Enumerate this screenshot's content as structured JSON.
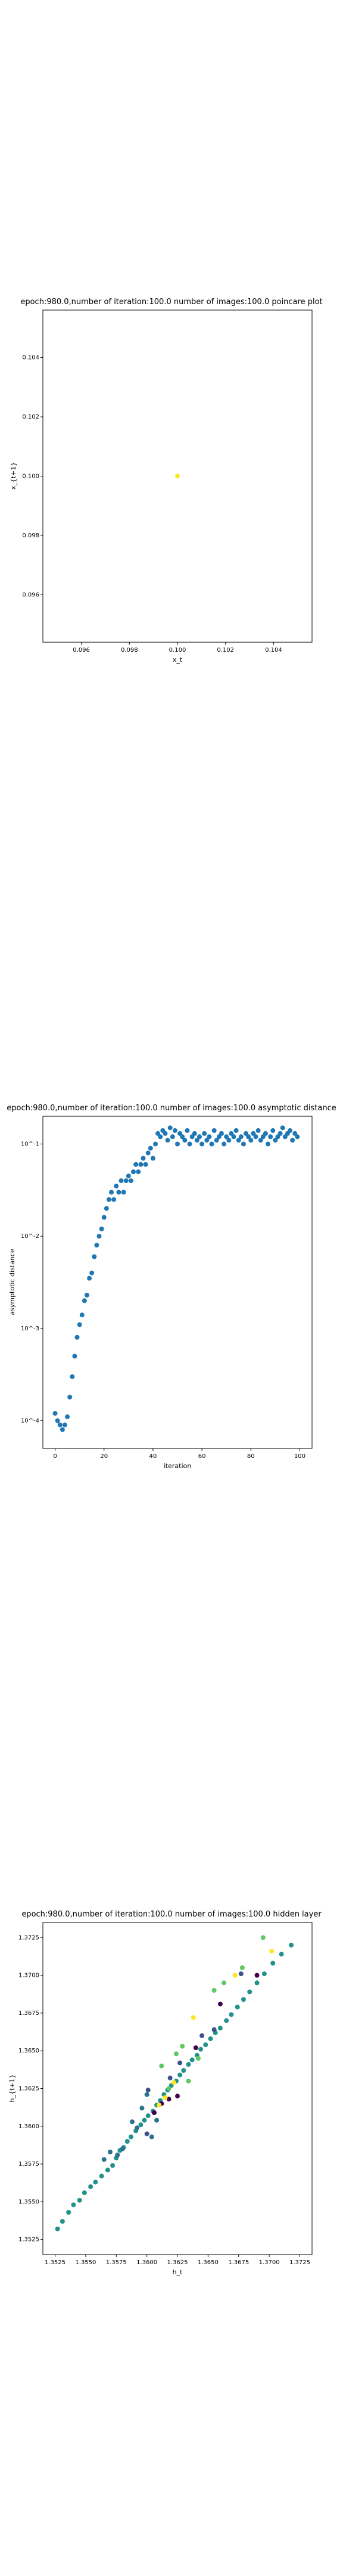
{
  "page": {
    "background": "#ffffff"
  },
  "charts": [
    {
      "id": "poincare",
      "title": "epoch:980.0,number of iteration:100.0  number of images:100.0 poincare plot",
      "xlabel": "x_t",
      "ylabel": "x_{t+1}",
      "xticks": [
        "0.096",
        "0.098",
        "0.100",
        "0.102",
        "0.104"
      ],
      "yticks": [
        "0.104",
        "0.102",
        "0.100",
        "0.098",
        "0.096"
      ]
    },
    {
      "id": "asymptotic",
      "title": "epoch:980.0,number of iteration:100.0  number of images:100.0 asymptotic distance",
      "xlabel": "iteration",
      "ylabel": "asymptotic distance",
      "xticks": [
        "0",
        "20",
        "40",
        "60",
        "80",
        "100"
      ],
      "yticks": [
        "10^-1",
        "10^-2",
        "10^-3",
        "10^-4"
      ]
    },
    {
      "id": "hidden",
      "title": "epoch:980.0,number of iteration:100.0  number of images:100.0 hidden layer",
      "xlabel": "h_t",
      "ylabel": "h_{t+1}",
      "xticks": [
        "1.3525",
        "1.3550",
        "1.3575",
        "1.3600",
        "1.3625",
        "1.3650",
        "1.3675",
        "1.3700",
        "1.3725"
      ],
      "yticks": [
        "1.3725",
        "1.3700",
        "1.3675",
        "1.3650",
        "1.3625",
        "1.3600",
        "1.3575",
        "1.3550",
        "1.3525"
      ]
    }
  ],
  "chart_data": [
    {
      "type": "scatter",
      "title": "epoch:980.0,number of iteration:100.0  number of images:100.0 poincare plot",
      "xlabel": "x_t",
      "ylabel": "x_{t+1}",
      "xlim": [
        0.0944,
        0.1056
      ],
      "ylim": [
        0.0944,
        0.1056
      ],
      "points": [
        {
          "x": 0.1,
          "y": 0.1
        }
      ],
      "color": "#fde725"
    },
    {
      "type": "scatter",
      "title": "epoch:980.0,number of iteration:100.0  number of images:100.0 asymptotic distance",
      "xlabel": "iteration",
      "ylabel": "asymptotic distance",
      "xlim": [
        -5,
        105
      ],
      "yscale": "log",
      "ylim": [
        5e-05,
        0.2
      ],
      "x": [
        0,
        1,
        2,
        3,
        4,
        5,
        6,
        7,
        8,
        9,
        10,
        11,
        12,
        13,
        14,
        15,
        16,
        17,
        18,
        19,
        20,
        21,
        22,
        23,
        24,
        25,
        26,
        27,
        28,
        29,
        30,
        31,
        32,
        33,
        34,
        35,
        36,
        37,
        38,
        39,
        40,
        41,
        42,
        43,
        44,
        45,
        46,
        47,
        48,
        49,
        50,
        51,
        52,
        53,
        54,
        55,
        56,
        57,
        58,
        59,
        60,
        61,
        62,
        63,
        64,
        65,
        66,
        67,
        68,
        69,
        70,
        71,
        72,
        73,
        74,
        75,
        76,
        77,
        78,
        79,
        80,
        81,
        82,
        83,
        84,
        85,
        86,
        87,
        88,
        89,
        90,
        91,
        92,
        93,
        94,
        95,
        96,
        97,
        98,
        99
      ],
      "y": [
        0.00012,
        0.0001,
        9e-05,
        8e-05,
        9e-05,
        0.00011,
        0.00018,
        0.0003,
        0.0005,
        0.0008,
        0.0011,
        0.0014,
        0.002,
        0.0023,
        0.0035,
        0.004,
        0.006,
        0.008,
        0.01,
        0.012,
        0.016,
        0.02,
        0.025,
        0.03,
        0.025,
        0.035,
        0.03,
        0.04,
        0.03,
        0.04,
        0.045,
        0.04,
        0.05,
        0.06,
        0.05,
        0.06,
        0.07,
        0.06,
        0.08,
        0.09,
        0.07,
        0.1,
        0.13,
        0.12,
        0.14,
        0.13,
        0.11,
        0.15,
        0.12,
        0.14,
        0.1,
        0.13,
        0.12,
        0.11,
        0.14,
        0.1,
        0.12,
        0.13,
        0.11,
        0.12,
        0.1,
        0.13,
        0.11,
        0.12,
        0.1,
        0.14,
        0.11,
        0.12,
        0.13,
        0.1,
        0.12,
        0.11,
        0.13,
        0.12,
        0.14,
        0.11,
        0.12,
        0.1,
        0.13,
        0.12,
        0.11,
        0.13,
        0.12,
        0.14,
        0.11,
        0.12,
        0.13,
        0.1,
        0.12,
        0.14,
        0.11,
        0.12,
        0.13,
        0.15,
        0.12,
        0.13,
        0.14,
        0.11,
        0.13,
        0.12
      ],
      "color": "#1f77b4"
    },
    {
      "type": "scatter",
      "title": "epoch:980.0,number of iteration:100.0  number of images:100.0 hidden layer",
      "xlabel": "h_t",
      "ylabel": "h_{t+1}",
      "xlim": [
        1.3515,
        1.3735
      ],
      "ylim": [
        1.3515,
        1.3735
      ],
      "points": [
        {
          "x": 1.3527,
          "y": 1.3532,
          "c": "#21918c"
        },
        {
          "x": 1.3531,
          "y": 1.3537,
          "c": "#21918c"
        },
        {
          "x": 1.3536,
          "y": 1.3543,
          "c": "#21918c"
        },
        {
          "x": 1.354,
          "y": 1.3548,
          "c": "#21918c"
        },
        {
          "x": 1.3545,
          "y": 1.3551,
          "c": "#21918c"
        },
        {
          "x": 1.3549,
          "y": 1.3556,
          "c": "#21918c"
        },
        {
          "x": 1.3554,
          "y": 1.356,
          "c": "#21918c"
        },
        {
          "x": 1.3558,
          "y": 1.3563,
          "c": "#21918c"
        },
        {
          "x": 1.3563,
          "y": 1.3567,
          "c": "#21918c"
        },
        {
          "x": 1.3568,
          "y": 1.3571,
          "c": "#21918c"
        },
        {
          "x": 1.3572,
          "y": 1.3574,
          "c": "#21918c"
        },
        {
          "x": 1.3575,
          "y": 1.3579,
          "c": "#21918c"
        },
        {
          "x": 1.3578,
          "y": 1.3584,
          "c": "#21918c"
        },
        {
          "x": 1.3581,
          "y": 1.3586,
          "c": "#21918c"
        },
        {
          "x": 1.3584,
          "y": 1.359,
          "c": "#21918c"
        },
        {
          "x": 1.3587,
          "y": 1.3593,
          "c": "#21918c"
        },
        {
          "x": 1.3591,
          "y": 1.3597,
          "c": "#21918c"
        },
        {
          "x": 1.3595,
          "y": 1.3601,
          "c": "#21918c"
        },
        {
          "x": 1.3598,
          "y": 1.3604,
          "c": "#21918c"
        },
        {
          "x": 1.3601,
          "y": 1.3607,
          "c": "#21918c"
        },
        {
          "x": 1.3605,
          "y": 1.361,
          "c": "#21918c"
        },
        {
          "x": 1.3608,
          "y": 1.3614,
          "c": "#21918c"
        },
        {
          "x": 1.3611,
          "y": 1.3617,
          "c": "#21918c"
        },
        {
          "x": 1.3614,
          "y": 1.3621,
          "c": "#21918c"
        },
        {
          "x": 1.3617,
          "y": 1.3624,
          "c": "#21918c"
        },
        {
          "x": 1.362,
          "y": 1.3627,
          "c": "#21918c"
        },
        {
          "x": 1.3624,
          "y": 1.363,
          "c": "#21918c"
        },
        {
          "x": 1.3627,
          "y": 1.3634,
          "c": "#21918c"
        },
        {
          "x": 1.363,
          "y": 1.3637,
          "c": "#21918c"
        },
        {
          "x": 1.3634,
          "y": 1.3641,
          "c": "#21918c"
        },
        {
          "x": 1.3637,
          "y": 1.3644,
          "c": "#21918c"
        },
        {
          "x": 1.3641,
          "y": 1.3647,
          "c": "#21918c"
        },
        {
          "x": 1.3644,
          "y": 1.3651,
          "c": "#21918c"
        },
        {
          "x": 1.3648,
          "y": 1.3654,
          "c": "#21918c"
        },
        {
          "x": 1.3652,
          "y": 1.3658,
          "c": "#21918c"
        },
        {
          "x": 1.3656,
          "y": 1.3662,
          "c": "#21918c"
        },
        {
          "x": 1.366,
          "y": 1.3665,
          "c": "#21918c"
        },
        {
          "x": 1.3665,
          "y": 1.367,
          "c": "#21918c"
        },
        {
          "x": 1.3669,
          "y": 1.3674,
          "c": "#21918c"
        },
        {
          "x": 1.3674,
          "y": 1.3679,
          "c": "#21918c"
        },
        {
          "x": 1.3679,
          "y": 1.3684,
          "c": "#21918c"
        },
        {
          "x": 1.3684,
          "y": 1.3689,
          "c": "#21918c"
        },
        {
          "x": 1.369,
          "y": 1.3695,
          "c": "#21918c"
        },
        {
          "x": 1.3696,
          "y": 1.3701,
          "c": "#21918c"
        },
        {
          "x": 1.3703,
          "y": 1.3708,
          "c": "#21918c"
        },
        {
          "x": 1.371,
          "y": 1.3714,
          "c": "#21918c"
        },
        {
          "x": 1.3718,
          "y": 1.372,
          "c": "#21918c"
        },
        {
          "x": 1.3565,
          "y": 1.3578,
          "c": "#2c728e"
        },
        {
          "x": 1.357,
          "y": 1.3583,
          "c": "#2c728e"
        },
        {
          "x": 1.3576,
          "y": 1.3581,
          "c": "#2c728e"
        },
        {
          "x": 1.358,
          "y": 1.3585,
          "c": "#2c728e"
        },
        {
          "x": 1.3588,
          "y": 1.3603,
          "c": "#2c728e"
        },
        {
          "x": 1.3592,
          "y": 1.3599,
          "c": "#2c728e"
        },
        {
          "x": 1.3596,
          "y": 1.3612,
          "c": "#2c728e"
        },
        {
          "x": 1.36,
          "y": 1.3621,
          "c": "#2c728e"
        },
        {
          "x": 1.3604,
          "y": 1.3593,
          "c": "#2c728e"
        },
        {
          "x": 1.3608,
          "y": 1.3604,
          "c": "#2c728e"
        },
        {
          "x": 1.3606,
          "y": 1.3609,
          "c": "#440154"
        },
        {
          "x": 1.3612,
          "y": 1.3615,
          "c": "#440154"
        },
        {
          "x": 1.3618,
          "y": 1.3618,
          "c": "#440154"
        },
        {
          "x": 1.3625,
          "y": 1.362,
          "c": "#440154"
        },
        {
          "x": 1.364,
          "y": 1.3652,
          "c": "#440154"
        },
        {
          "x": 1.366,
          "y": 1.3681,
          "c": "#440154"
        },
        {
          "x": 1.369,
          "y": 1.37,
          "c": "#440154"
        },
        {
          "x": 1.361,
          "y": 1.3614,
          "c": "#fde725"
        },
        {
          "x": 1.3615,
          "y": 1.3619,
          "c": "#fde725"
        },
        {
          "x": 1.3622,
          "y": 1.3629,
          "c": "#fde725"
        },
        {
          "x": 1.3638,
          "y": 1.3672,
          "c": "#fde725"
        },
        {
          "x": 1.3672,
          "y": 1.37,
          "c": "#fde725"
        },
        {
          "x": 1.3702,
          "y": 1.3716,
          "c": "#fde725"
        },
        {
          "x": 1.3612,
          "y": 1.364,
          "c": "#5ec962"
        },
        {
          "x": 1.3618,
          "y": 1.3625,
          "c": "#5ec962"
        },
        {
          "x": 1.3624,
          "y": 1.3648,
          "c": "#5ec962"
        },
        {
          "x": 1.3629,
          "y": 1.3653,
          "c": "#5ec962"
        },
        {
          "x": 1.3634,
          "y": 1.363,
          "c": "#5ec962"
        },
        {
          "x": 1.3642,
          "y": 1.3645,
          "c": "#5ec962"
        },
        {
          "x": 1.3655,
          "y": 1.369,
          "c": "#5ec962"
        },
        {
          "x": 1.3663,
          "y": 1.3695,
          "c": "#5ec962"
        },
        {
          "x": 1.3678,
          "y": 1.3705,
          "c": "#5ec962"
        },
        {
          "x": 1.3695,
          "y": 1.3725,
          "c": "#5ec962"
        },
        {
          "x": 1.3601,
          "y": 1.3624,
          "c": "#3b528b"
        },
        {
          "x": 1.3619,
          "y": 1.3632,
          "c": "#3b528b"
        },
        {
          "x": 1.3627,
          "y": 1.3642,
          "c": "#3b528b"
        },
        {
          "x": 1.3645,
          "y": 1.366,
          "c": "#3b528b"
        },
        {
          "x": 1.3655,
          "y": 1.3664,
          "c": "#3b528b"
        },
        {
          "x": 1.3677,
          "y": 1.3701,
          "c": "#3b528b"
        },
        {
          "x": 1.36,
          "y": 1.3595,
          "c": "#3b528b"
        }
      ]
    }
  ]
}
